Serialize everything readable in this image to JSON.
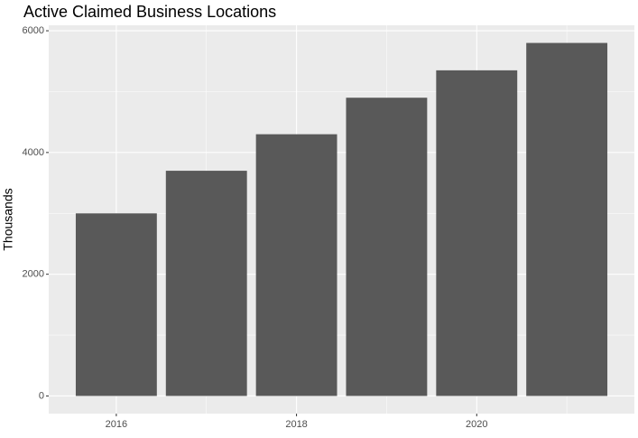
{
  "chart_data": {
    "type": "bar",
    "title": "Active Claimed Business Locations",
    "y_label": "Thousands",
    "x": [
      2016,
      2017,
      2018,
      2019,
      2020,
      2021
    ],
    "values": [
      3000,
      3700,
      4300,
      4900,
      5350,
      5800
    ],
    "color": "#595959",
    "xlim": [
      2015.25,
      2021.75
    ],
    "xticks": [
      2016,
      2018,
      2020
    ],
    "xminor": [
      2017,
      2019,
      2021
    ],
    "ylim": [
      -290,
      6090
    ],
    "yticks": [
      0,
      2000,
      4000,
      6000
    ],
    "yminor": [
      1000,
      3000,
      5000
    ],
    "bar_width": 0.9,
    "grid": true
  }
}
